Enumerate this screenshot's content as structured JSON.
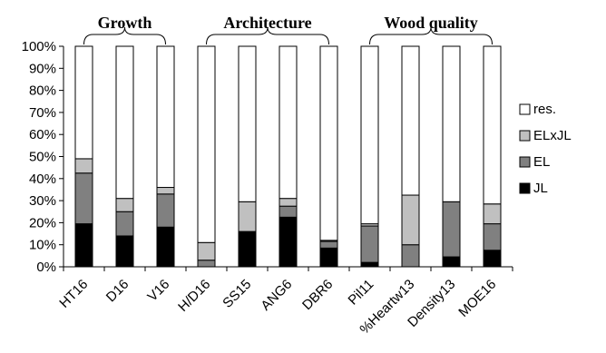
{
  "chart_data": {
    "type": "bar",
    "stacked": true,
    "percent_axis": true,
    "categories": [
      "HT16",
      "D16",
      "V16",
      "H/D16",
      "SS15",
      "ANG6",
      "DBR6",
      "Pil11",
      "%Heartw13",
      "Density13",
      "MOE16"
    ],
    "series": [
      {
        "name": "JL",
        "color": "#000000",
        "values": [
          19.5,
          14,
          18,
          0,
          16,
          22.5,
          8.5,
          2,
          0,
          4.5,
          7.5
        ]
      },
      {
        "name": "EL",
        "color": "#808080",
        "values": [
          23,
          11,
          15,
          3,
          0,
          5,
          3,
          16.5,
          10,
          25,
          12
        ]
      },
      {
        "name": "ELxJL",
        "color": "#c0c0c0",
        "values": [
          6.5,
          6,
          3,
          8,
          13.5,
          3.5,
          0.5,
          1,
          22.5,
          0,
          9
        ]
      },
      {
        "name": "res.",
        "color": "#ffffff",
        "values": [
          51,
          69,
          64,
          89,
          70.5,
          69,
          88,
          80.5,
          67.5,
          70.5,
          71.5
        ]
      }
    ],
    "legend_order": [
      "res.",
      "ELxJL",
      "EL",
      "JL"
    ],
    "legend_position": "right",
    "yticks": [
      "0%",
      "10%",
      "20%",
      "30%",
      "40%",
      "50%",
      "60%",
      "70%",
      "80%",
      "90%",
      "100%"
    ],
    "ylim": [
      0,
      100
    ],
    "grid": false,
    "groups": [
      {
        "label": "Growth",
        "from": 0,
        "to": 2
      },
      {
        "label": "Architecture",
        "from": 3,
        "to": 6
      },
      {
        "label": "Wood quality",
        "from": 7,
        "to": 10
      }
    ]
  }
}
